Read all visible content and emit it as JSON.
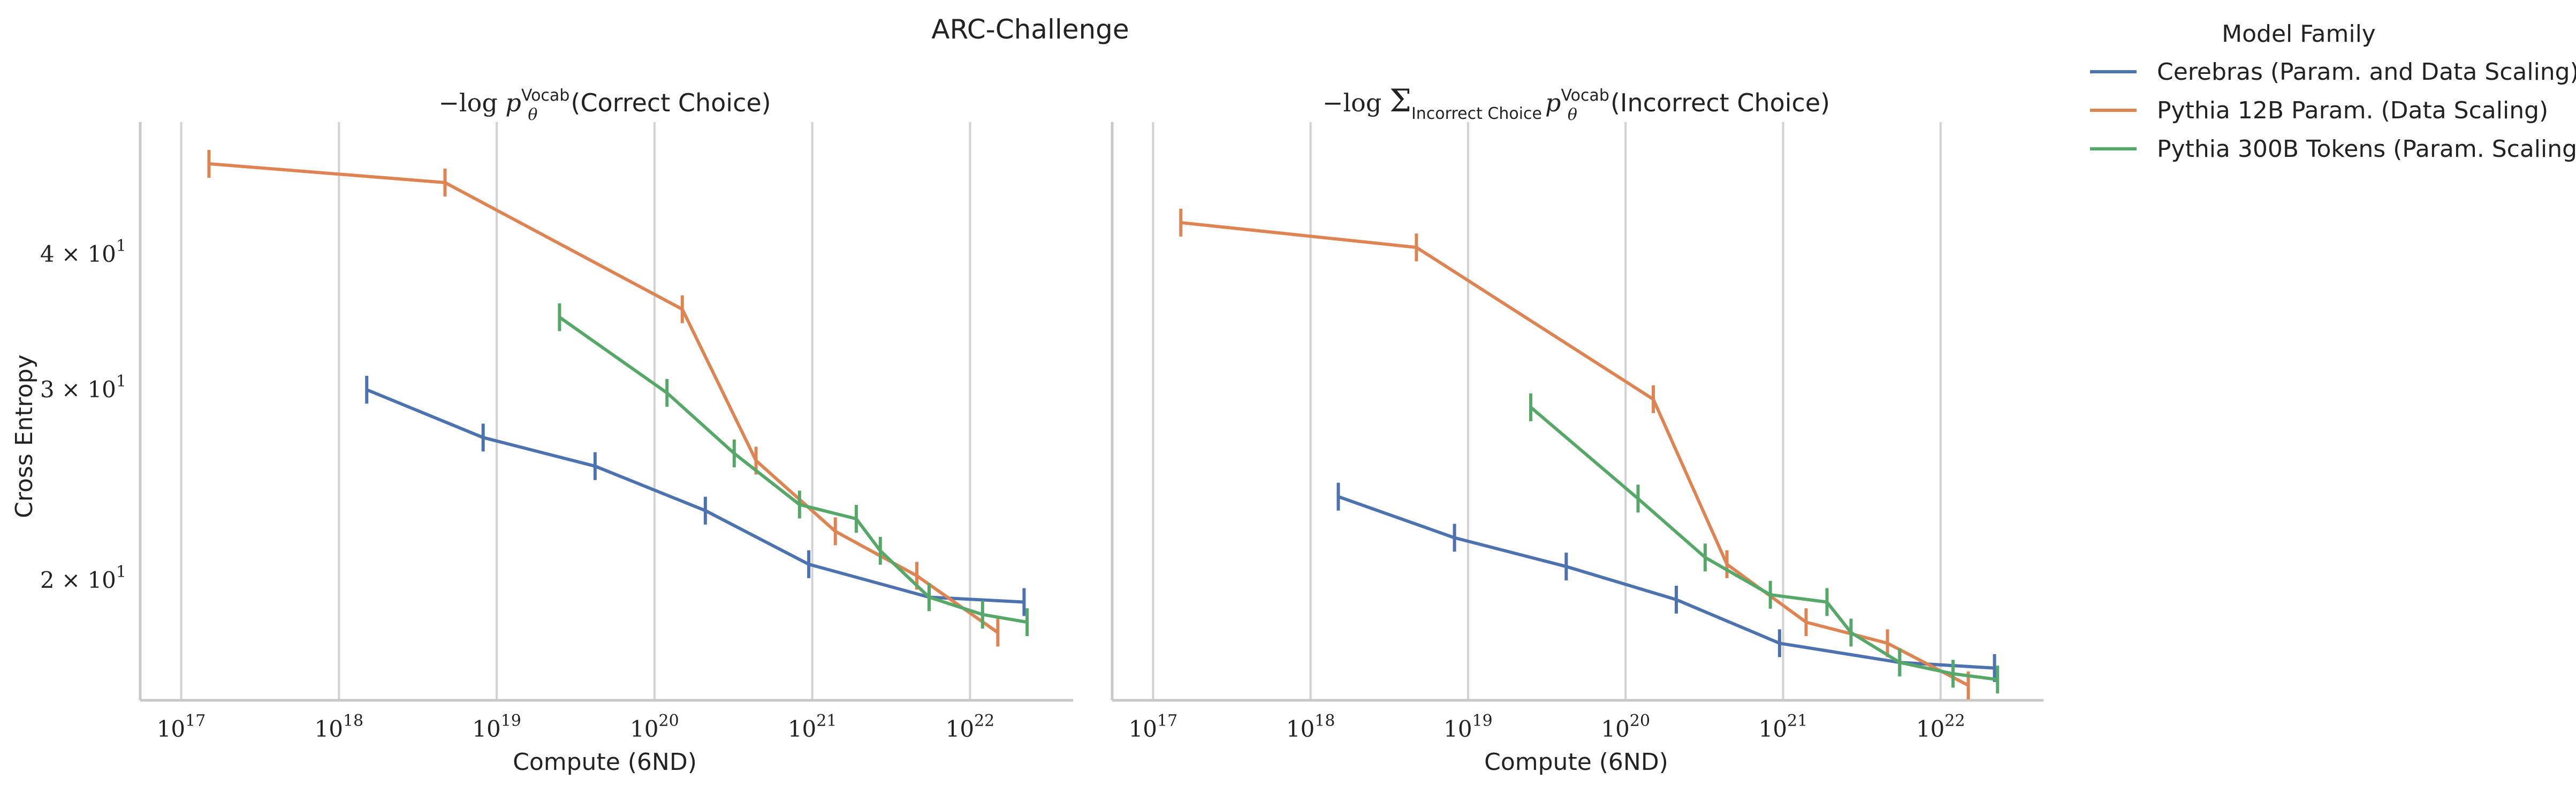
{
  "figure": {
    "suptitle": "ARC-Challenge",
    "legend": {
      "title": "Model Family",
      "entries": [
        {
          "label": "Cerebras (Param. and Data Scaling)",
          "color": "#4c72b0"
        },
        {
          "label": "Pythia 12B Param. (Data Scaling)",
          "color": "#dd8452"
        },
        {
          "label": "Pythia 300B Tokens (Param. Scaling)",
          "color": "#55a868"
        }
      ],
      "placement": "outside-top-right"
    },
    "ylabel": "Cross Entropy",
    "xlabel": "Compute (6ND)"
  },
  "chart_data": [
    {
      "type": "line",
      "title": "−log p_θ^Vocab(Correct Choice)",
      "title_parts": {
        "pre": "−log ",
        "p": "p",
        "sub": "θ",
        "sup": "Vocab",
        "post": "(Correct Choice)"
      },
      "xlabel": "Compute (6ND)",
      "ylabel": "Cross Entropy",
      "xscale": "log",
      "yscale": "log",
      "xlim": [
        5.5e+16,
        4.5e+22
      ],
      "ylim": [
        15.5,
        53
      ],
      "xticks": [
        {
          "value": 1e+17,
          "base": "10",
          "exp": "17"
        },
        {
          "value": 1e+18,
          "base": "10",
          "exp": "18"
        },
        {
          "value": 1e+19,
          "base": "10",
          "exp": "19"
        },
        {
          "value": 1e+20,
          "base": "10",
          "exp": "20"
        },
        {
          "value": 1e+21,
          "base": "10",
          "exp": "21"
        },
        {
          "value": 1e+22,
          "base": "10",
          "exp": "22"
        }
      ],
      "yticks": [
        {
          "value": 40,
          "mant": "4",
          "base": "10",
          "exp": "1"
        },
        {
          "value": 30,
          "mant": "3",
          "base": "10",
          "exp": "1"
        },
        {
          "value": 20,
          "mant": "2",
          "base": "10",
          "exp": "1"
        }
      ],
      "grid": "vertical",
      "series": [
        {
          "name": "Cerebras (Param. and Data Scaling)",
          "color": "#4c72b0",
          "x": [
            1.5e+18,
            8.2e+18,
            4.2e+19,
            2.1e+20,
            9.5e+20,
            5.5e+21,
            2.2e+22
          ],
          "y": [
            30.0,
            27.1,
            25.5,
            23.2,
            20.7,
            19.3,
            19.1
          ]
        },
        {
          "name": "Pythia 12B Param. (Data Scaling)",
          "color": "#dd8452",
          "x": [
            1.5e+17,
            4.7e+18,
            1.5e+20,
            4.4e+20,
            1.4e+21,
            4.6e+21,
            1.5e+22
          ],
          "y": [
            48.5,
            46.6,
            35.6,
            25.8,
            22.2,
            20.2,
            17.9
          ]
        },
        {
          "name": "Pythia 300B Tokens (Param. Scaling)",
          "color": "#55a868",
          "x": [
            2.5e+19,
            1.2e+20,
            3.2e+20,
            8.3e+20,
            1.9e+21,
            2.7e+21,
            5.5e+21,
            1.2e+22,
            2.3e+22
          ],
          "y": [
            35.0,
            29.8,
            26.2,
            23.5,
            22.8,
            21.3,
            19.3,
            18.6,
            18.3
          ]
        }
      ]
    },
    {
      "type": "line",
      "title": "−log Σ_Incorrect Choice p_θ^Vocab(Incorrect Choice)",
      "title_parts": {
        "pre": "−log ",
        "sum": "Σ",
        "sumsub": "Incorrect Choice",
        "p": "p",
        "sub": "θ",
        "sup": "Vocab",
        "post": "(Incorrect Choice)"
      },
      "xlabel": "Compute (6ND)",
      "xscale": "log",
      "yscale": "log",
      "xlim": [
        5.5e+16,
        4.5e+22
      ],
      "ylim": [
        15.5,
        53
      ],
      "xticks": [
        {
          "value": 1e+17,
          "base": "10",
          "exp": "17"
        },
        {
          "value": 1e+18,
          "base": "10",
          "exp": "18"
        },
        {
          "value": 1e+19,
          "base": "10",
          "exp": "19"
        },
        {
          "value": 1e+20,
          "base": "10",
          "exp": "20"
        },
        {
          "value": 1e+21,
          "base": "10",
          "exp": "21"
        },
        {
          "value": 1e+22,
          "base": "10",
          "exp": "22"
        }
      ],
      "grid": "vertical",
      "series": [
        {
          "name": "Cerebras (Param. and Data Scaling)",
          "color": "#4c72b0",
          "x": [
            1.5e+18,
            8.2e+18,
            4.2e+19,
            2.1e+20,
            9.5e+20,
            5.5e+21,
            2.2e+22
          ],
          "y": [
            23.9,
            21.9,
            20.6,
            19.2,
            17.5,
            16.8,
            16.6
          ]
        },
        {
          "name": "Pythia 12B Param. (Data Scaling)",
          "color": "#dd8452",
          "x": [
            1.5e+17,
            4.7e+18,
            1.5e+20,
            4.4e+20,
            1.4e+21,
            4.6e+21,
            1.5e+22
          ],
          "y": [
            42.8,
            40.6,
            29.4,
            20.7,
            18.3,
            17.5,
            16.0
          ]
        },
        {
          "name": "Pythia 300B Tokens (Param. Scaling)",
          "color": "#55a868",
          "x": [
            2.5e+19,
            1.2e+20,
            3.2e+20,
            8.3e+20,
            1.9e+21,
            2.7e+21,
            5.5e+21,
            1.2e+22,
            2.3e+22
          ],
          "y": [
            28.9,
            23.8,
            21.0,
            19.4,
            19.1,
            17.9,
            16.8,
            16.4,
            16.2
          ]
        }
      ]
    }
  ]
}
